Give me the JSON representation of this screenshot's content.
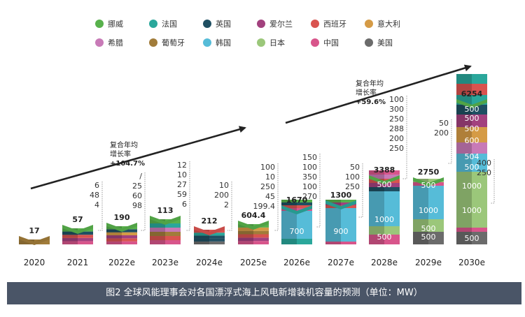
{
  "colors": {
    "挪威": "#58b14c",
    "法国": "#2aa79b",
    "英国": "#1f4f62",
    "爱尔兰": "#a2417e",
    "西班牙": "#d9534f",
    "意大利": "#d59b46",
    "希腊": "#c87ab7",
    "葡萄牙": "#a17c3a",
    "韩国": "#56bcd8",
    "日本": "#9bc77a",
    "中国": "#d8558b",
    "美国": "#6b6b6b"
  },
  "chart_data": {
    "type": "bar",
    "categories": [
      "2020",
      "2021",
      "2022e",
      "2023e",
      "2024e",
      "2025e",
      "2026e",
      "2027e",
      "2028e",
      "2029e",
      "2030e"
    ],
    "totals": [
      17,
      57,
      190,
      113,
      212,
      604.4,
      1670,
      1300,
      3388,
      2750,
      6254
    ],
    "legend": [
      "挪威",
      "法国",
      "英国",
      "爱尔兰",
      "西班牙",
      "意大利",
      "希腊",
      "葡萄牙",
      "韩国",
      "日本",
      "中国",
      "美国"
    ],
    "bar_labels": [
      [
        "17"
      ],
      [],
      [],
      [],
      [],
      [],
      [
        "700"
      ],
      [
        "900"
      ],
      [
        "500",
        "1000",
        "500"
      ],
      [
        "500",
        "1000",
        "500",
        "500"
      ],
      [
        "500",
        "500",
        "500",
        "600",
        "504",
        "500",
        "1000",
        "1000",
        "500"
      ]
    ],
    "side_labels": [
      [],
      [
        "6",
        "48",
        "4"
      ],
      [
        "/",
        "25",
        "60",
        "98"
      ],
      [
        "12",
        "10",
        "27",
        "59",
        "6"
      ],
      [
        "10",
        "200",
        "2"
      ],
      [
        "100",
        "10",
        "250",
        "45",
        "199.4"
      ],
      [
        "150",
        "100",
        "350",
        "100",
        "270"
      ],
      [
        "50",
        "100",
        "250"
      ],
      [
        "100",
        "300",
        "250",
        "288",
        "200",
        "250"
      ],
      [
        "50",
        "200"
      ],
      [
        "400",
        "250"
      ]
    ],
    "annotations": [
      {
        "lines": [
          "复合年均",
          "增长率",
          "+104.7%"
        ]
      },
      {
        "lines": [
          "复合年均",
          "增长率",
          "+59.6%"
        ]
      }
    ],
    "caption": "图2 全球风能理事会对各国漂浮式海上风电新增装机容量的预测（单位：MW）"
  }
}
